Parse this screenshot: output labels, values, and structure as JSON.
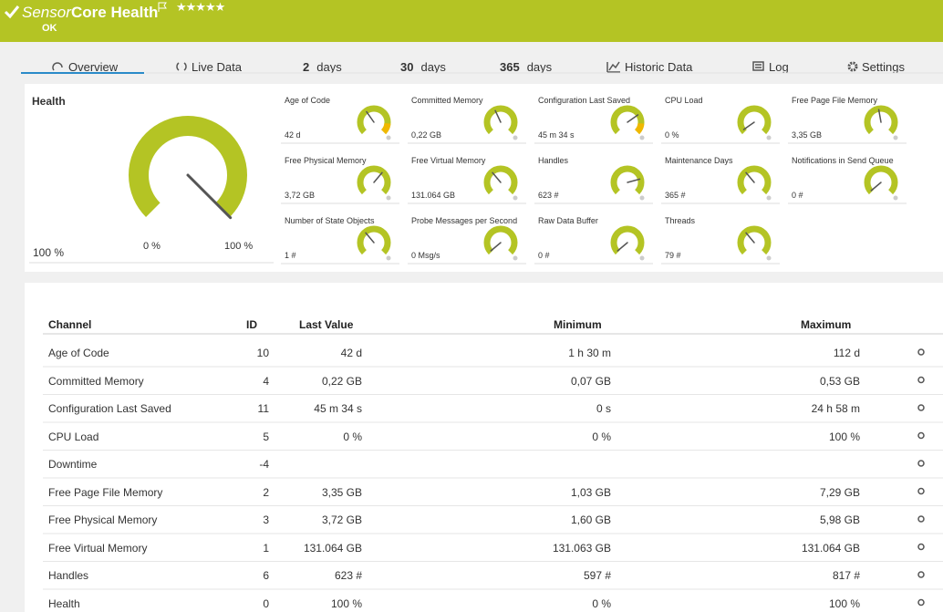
{
  "header": {
    "prefix": "Sensor",
    "title": "Core Health",
    "stars": "★★★★★",
    "status": "OK"
  },
  "tabs": [
    {
      "label": "Overview"
    },
    {
      "label": "Live Data"
    },
    {
      "num": "2",
      "label": "days"
    },
    {
      "num": "30",
      "label": "days"
    },
    {
      "num": "365",
      "label": "days"
    },
    {
      "label": "Historic Data"
    },
    {
      "label": "Log"
    },
    {
      "label": "Settings"
    }
  ],
  "health": {
    "title": "Health",
    "value": "100 %",
    "min": "0 %",
    "max": "100 %"
  },
  "gauges": [
    {
      "name": "Age of Code",
      "value": "42 d"
    },
    {
      "name": "Committed Memory",
      "value": "0,22 GB"
    },
    {
      "name": "Configuration Last Saved",
      "value": "45 m 34 s"
    },
    {
      "name": "CPU Load",
      "value": "0 %"
    },
    {
      "name": "Free Page File Memory",
      "value": "3,35 GB"
    },
    {
      "name": "Free Physical Memory",
      "value": "3,72 GB"
    },
    {
      "name": "Free Virtual Memory",
      "value": "131.064 GB"
    },
    {
      "name": "Handles",
      "value": "623 #"
    },
    {
      "name": "Maintenance Days",
      "value": "365 #"
    },
    {
      "name": "Notifications in Send Queue",
      "value": "0 #"
    },
    {
      "name": "Number of State Objects",
      "value": "1 #"
    },
    {
      "name": "Probe Messages per Second",
      "value": "0 Msg/s"
    },
    {
      "name": "Raw Data Buffer",
      "value": "0 #"
    },
    {
      "name": "Threads",
      "value": "79 #"
    }
  ],
  "table": {
    "columns": [
      "Channel",
      "ID",
      "Last Value",
      "Minimum",
      "Maximum"
    ],
    "rows": [
      [
        "Age of Code",
        10,
        "42 d",
        "1 h 30 m",
        "112 d"
      ],
      [
        "Committed Memory",
        4,
        "0,22 GB",
        "0,07 GB",
        "0,53 GB"
      ],
      [
        "Configuration Last Saved",
        11,
        "45 m 34 s",
        "0 s",
        "24 h 58 m"
      ],
      [
        "CPU Load",
        5,
        "0 %",
        "0 %",
        "100 %"
      ],
      [
        "Downtime",
        -4,
        null,
        null,
        null
      ],
      [
        "Free Page File Memory",
        2,
        "3,35 GB",
        "1,03 GB",
        "7,29 GB"
      ],
      [
        "Free Physical Memory",
        3,
        "3,72 GB",
        "1,60 GB",
        "5,98 GB"
      ],
      [
        "Free Virtual Memory",
        1,
        "131.064 GB",
        "131.063 GB",
        "131.064 GB"
      ],
      [
        "Handles",
        6,
        "623 #",
        "597 #",
        "817 #"
      ],
      [
        "Health",
        0,
        "100 %",
        "0 %",
        "100 %"
      ]
    ]
  }
}
